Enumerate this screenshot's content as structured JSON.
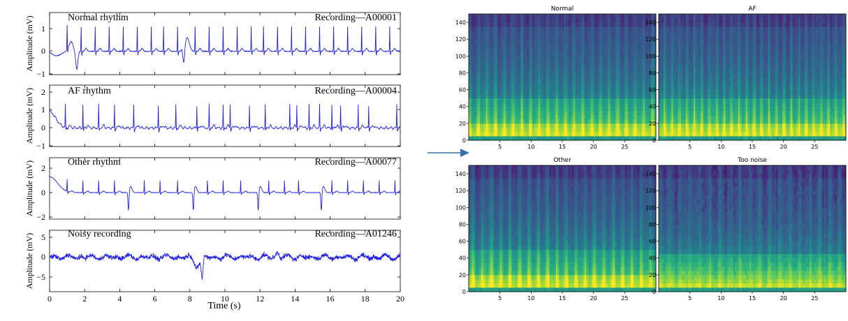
{
  "ecg": {
    "xlabel": "Time (s)",
    "ylabel": "Amplitude (mV)",
    "x_ticks": [
      "0",
      "2",
      "4",
      "6",
      "8",
      "10",
      "12",
      "14",
      "16",
      "18",
      "20"
    ],
    "line_color": "#1f1fe6",
    "panels": [
      {
        "title": "Normal rhythm",
        "recording": "Recording—A00001",
        "y_ticks": [
          "1",
          "0",
          "−1"
        ]
      },
      {
        "title": "AF rhythm",
        "recording": "Recording—A00004",
        "y_ticks": [
          "2",
          "1",
          "0",
          "−1"
        ]
      },
      {
        "title": "Other rhythm",
        "recording": "Recording—A00077",
        "y_ticks": [
          "2",
          "0",
          "−2"
        ]
      },
      {
        "title": "Noisy recording",
        "recording": "Recording—A01246",
        "y_ticks": [
          "5",
          "0",
          "−5"
        ]
      }
    ]
  },
  "arrow_color": "#3a6fb0",
  "spectrograms": {
    "x_ticks": [
      "5",
      "10",
      "15",
      "20",
      "25"
    ],
    "y_ticks": [
      "0",
      "20",
      "40",
      "60",
      "80",
      "100",
      "120",
      "140"
    ],
    "colormap": "viridis",
    "panels": [
      {
        "title": "Normal"
      },
      {
        "title": "AF"
      },
      {
        "title": "Other"
      },
      {
        "title": "Too noise"
      }
    ]
  },
  "chart_data": [
    {
      "type": "line",
      "title": "Normal rhythm",
      "annotation": "Recording—A00001",
      "xlabel": "Time (s)",
      "ylabel": "Amplitude (mV)",
      "xlim": [
        0,
        20
      ],
      "ylim": [
        -1,
        1.5
      ],
      "beat_times": [
        1.0,
        1.8,
        2.6,
        3.4,
        4.2,
        5.0,
        5.8,
        6.5,
        7.3,
        8.3,
        9.1,
        9.9,
        10.7,
        11.5,
        12.2,
        13.0,
        13.8,
        14.6,
        15.4,
        16.2,
        17.0,
        17.8,
        18.6,
        19.4
      ],
      "peak_amplitude": 1.1
    },
    {
      "type": "line",
      "title": "AF rhythm",
      "annotation": "Recording—A00004",
      "xlabel": "Time (s)",
      "ylabel": "Amplitude (mV)",
      "xlim": [
        0,
        20
      ],
      "ylim": [
        -1,
        2.2
      ],
      "beat_times": [
        0.9,
        1.9,
        2.8,
        3.7,
        4.8,
        6.2,
        7.2,
        8.4,
        9.1,
        9.9,
        10.3,
        11.4,
        12.3,
        13.7,
        14.1,
        14.8,
        15.4,
        16.1,
        16.6,
        17.6,
        18.2,
        19.8
      ],
      "peak_amplitude": 1.3
    },
    {
      "type": "line",
      "title": "Other rhythm",
      "annotation": "Recording—A00077",
      "xlabel": "Time (s)",
      "ylabel": "Amplitude (mV)",
      "xlim": [
        0,
        20
      ],
      "ylim": [
        -2,
        2.5
      ],
      "beat_times": [
        1.0,
        1.9,
        2.8,
        3.7,
        5.4,
        6.3,
        7.3,
        9.0,
        9.9,
        10.9,
        12.5,
        13.4,
        14.2,
        16.1,
        17.0,
        17.9,
        18.8,
        19.7
      ],
      "peak_amplitude": 1.0
    },
    {
      "type": "line",
      "title": "Noisy recording",
      "annotation": "Recording—A01246",
      "xlabel": "Time (s)",
      "ylabel": "Amplitude (mV)",
      "xlim": [
        0,
        20
      ],
      "ylim": [
        -7,
        6
      ],
      "min_value": -6,
      "max_value": 2.5
    },
    {
      "type": "heatmap",
      "title": "Normal",
      "xlim": [
        0,
        30
      ],
      "ylim": [
        0,
        150
      ],
      "colormap": "viridis"
    },
    {
      "type": "heatmap",
      "title": "AF",
      "xlim": [
        0,
        30
      ],
      "ylim": [
        0,
        150
      ],
      "colormap": "viridis"
    },
    {
      "type": "heatmap",
      "title": "Other",
      "xlim": [
        0,
        30
      ],
      "ylim": [
        0,
        150
      ],
      "colormap": "viridis"
    },
    {
      "type": "heatmap",
      "title": "Too noise",
      "xlim": [
        0,
        30
      ],
      "ylim": [
        0,
        150
      ],
      "colormap": "viridis"
    }
  ]
}
